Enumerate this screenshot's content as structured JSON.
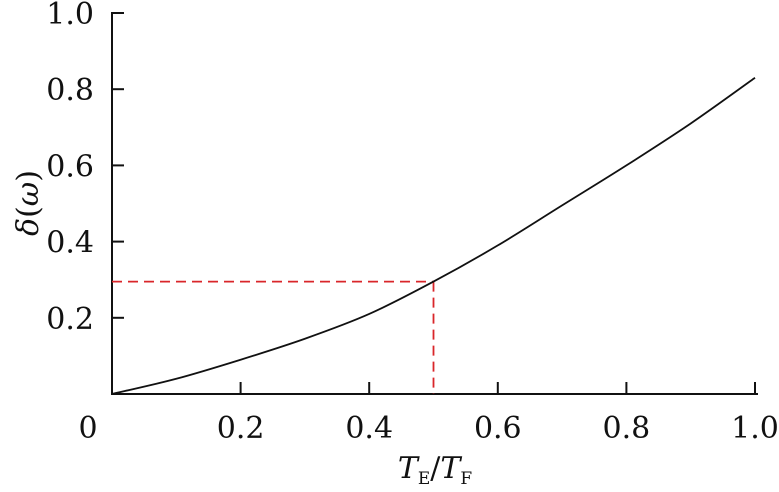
{
  "chart_data": {
    "type": "line",
    "title": "",
    "xlabel": {
      "base1": "T",
      "sub1": "E",
      "sep": "/",
      "base2": "T",
      "sub2": "F"
    },
    "ylabel": {
      "symbol": "δ",
      "open": "(",
      "arg": "ω",
      "close": ")"
    },
    "xlim": [
      0,
      1.0
    ],
    "ylim": [
      0,
      1.0
    ],
    "x_ticks": [
      0.2,
      0.4,
      0.6,
      0.8,
      1.0
    ],
    "x_tick_labels": [
      "0.2",
      "0.4",
      "0.6",
      "0.8",
      "1.0"
    ],
    "y_ticks": [
      0.2,
      0.4,
      0.6,
      0.8,
      1.0
    ],
    "y_tick_labels": [
      "0.2",
      "0.4",
      "0.6",
      "0.8",
      "1.0"
    ],
    "origin_label": "0",
    "grid": false,
    "series": [
      {
        "color": "#111111",
        "x": [
          0.0,
          0.1,
          0.2,
          0.3,
          0.4,
          0.5,
          0.6,
          0.7,
          0.8,
          0.9,
          1.0
        ],
        "y": [
          0.0,
          0.04,
          0.09,
          0.145,
          0.21,
          0.295,
          0.39,
          0.495,
          0.6,
          0.71,
          0.83
        ]
      }
    ],
    "annotations": [
      {
        "type": "dashed-guide",
        "color": "#d9262a",
        "x": 0.5,
        "y": 0.295
      }
    ]
  }
}
